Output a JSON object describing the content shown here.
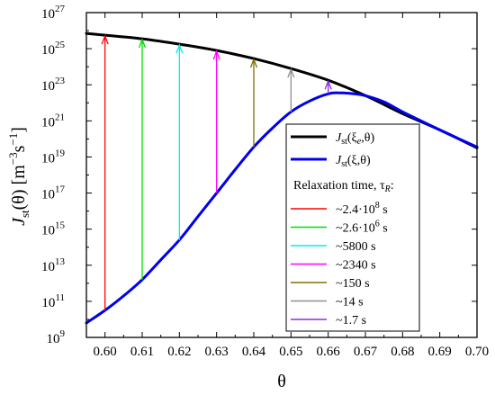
{
  "chart_data": {
    "type": "line",
    "xlabel": "θ",
    "ylabel_main": "J",
    "ylabel_sub": "st",
    "ylabel_arg": "(θ) [m",
    "ylabel_exp1": "−3",
    "ylabel_mid": "s",
    "ylabel_exp2": "−1",
    "ylabel_end": "]",
    "xlim": [
      0.595,
      0.7
    ],
    "ylim_log10": [
      9,
      27
    ],
    "x_ticks": [
      {
        "v": 0.6,
        "label": "0.60"
      },
      {
        "v": 0.61,
        "label": "0.61"
      },
      {
        "v": 0.62,
        "label": "0.62"
      },
      {
        "v": 0.63,
        "label": "0.63"
      },
      {
        "v": 0.64,
        "label": "0.64"
      },
      {
        "v": 0.65,
        "label": "0.65"
      },
      {
        "v": 0.66,
        "label": "0.66"
      },
      {
        "v": 0.67,
        "label": "0.67"
      },
      {
        "v": 0.68,
        "label": "0.68"
      },
      {
        "v": 0.69,
        "label": "0.69"
      },
      {
        "v": 0.7,
        "label": "0.70"
      }
    ],
    "y_ticks": [
      {
        "exp": 9,
        "base": "10",
        "sup": "9"
      },
      {
        "exp": 11,
        "base": "10",
        "sup": "11"
      },
      {
        "exp": 13,
        "base": "10",
        "sup": "13"
      },
      {
        "exp": 15,
        "base": "10",
        "sup": "15"
      },
      {
        "exp": 17,
        "base": "10",
        "sup": "17"
      },
      {
        "exp": 19,
        "base": "10",
        "sup": "19"
      },
      {
        "exp": 21,
        "base": "10",
        "sup": "21"
      },
      {
        "exp": 23,
        "base": "10",
        "sup": "23"
      },
      {
        "exp": 25,
        "base": "10",
        "sup": "25"
      },
      {
        "exp": 27,
        "base": "10",
        "sup": "27"
      }
    ],
    "series": [
      {
        "name": "J_st(ξ_e,θ)",
        "legend_main": "J",
        "legend_sub": "st",
        "legend_args": "(ξ",
        "legend_args_sub": "e",
        "legend_args_end": ",θ)",
        "color": "#000000",
        "x": [
          0.595,
          0.6,
          0.61,
          0.62,
          0.63,
          0.64,
          0.65,
          0.66,
          0.67,
          0.68,
          0.69,
          0.7
        ],
        "log10_y": [
          25.85,
          25.75,
          25.55,
          25.25,
          24.9,
          24.45,
          23.9,
          23.25,
          22.4,
          21.4,
          20.5,
          19.5
        ]
      },
      {
        "name": "J_st(ξ,θ)",
        "legend_main": "J",
        "legend_sub": "st",
        "legend_args": "(ξ,θ)",
        "color": "#0000ee",
        "x": [
          0.595,
          0.6,
          0.605,
          0.61,
          0.615,
          0.62,
          0.625,
          0.63,
          0.635,
          0.64,
          0.645,
          0.65,
          0.655,
          0.66,
          0.663,
          0.667,
          0.67,
          0.675,
          0.68,
          0.69,
          0.7
        ],
        "log10_y": [
          9.8,
          10.5,
          11.3,
          12.2,
          13.3,
          14.4,
          15.7,
          17.0,
          18.3,
          19.55,
          20.6,
          21.5,
          22.1,
          22.5,
          22.55,
          22.5,
          22.4,
          22.05,
          21.5,
          20.5,
          19.55
        ]
      }
    ],
    "arrows": [
      {
        "x": 0.6,
        "color": "#ff0000"
      },
      {
        "x": 0.61,
        "color": "#00dd00"
      },
      {
        "x": 0.62,
        "color": "#00eeee"
      },
      {
        "x": 0.63,
        "color": "#ff00ff"
      },
      {
        "x": 0.64,
        "color": "#807000"
      },
      {
        "x": 0.65,
        "color": "#909090"
      },
      {
        "x": 0.66,
        "color": "#8a2be2"
      }
    ],
    "legend": {
      "heading_prefix": "Relaxation time, τ",
      "heading_sub": "R",
      "heading_suffix": ":",
      "entries": [
        {
          "label": "~2.4·10",
          "sup": "8",
          "unit": " s",
          "color": "#ff0000"
        },
        {
          "label": "~2.6·10",
          "sup": "6",
          "unit": " s",
          "color": "#00dd00"
        },
        {
          "label": "~5800 s",
          "sup": "",
          "unit": "",
          "color": "#00eeee"
        },
        {
          "label": "~2340 s",
          "sup": "",
          "unit": "",
          "color": "#ff00ff"
        },
        {
          "label": "~150 s",
          "sup": "",
          "unit": "",
          "color": "#807000"
        },
        {
          "label": "~14 s",
          "sup": "",
          "unit": "",
          "color": "#909090"
        },
        {
          "label": "~1.7 s",
          "sup": "",
          "unit": "",
          "color": "#8a2be2"
        }
      ]
    }
  }
}
